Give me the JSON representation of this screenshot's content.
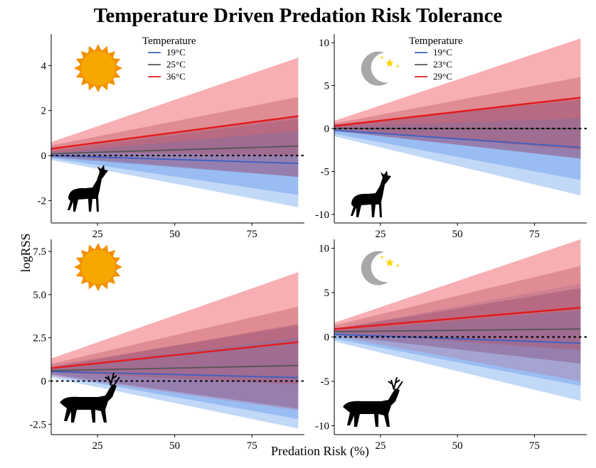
{
  "title": "Temperature Driven Predation Risk Tolerance",
  "xlabel": "Predation Risk (%)",
  "ylabel": "logRSS",
  "colors": {
    "series_19": "#3a5fc4",
    "series_mid": "#555555",
    "series_hot": "#e31a1c",
    "ci_cool_fill": "#78a8ee",
    "ci_hot_fill": "#f06d76",
    "icon_sun": "#f6a800",
    "icon_moon": "#a8a8a8",
    "icon_star": "#ffd200"
  },
  "chart_data": [
    {
      "type": "line",
      "panel": "top-left",
      "time_icon": "sun-icon",
      "animal_icon": "doe-icon",
      "legend_title": "Temperature",
      "x": [
        10,
        90
      ],
      "xlim": [
        10,
        92
      ],
      "xticks": [
        25,
        50,
        75
      ],
      "ylim": [
        -3.0,
        5.4
      ],
      "yticks": [
        -2,
        0,
        2,
        4
      ],
      "ytick_labels": [
        "-2",
        "0",
        "2",
        "4"
      ],
      "reference_line": 0,
      "series": [
        {
          "name": "19°C",
          "color": "#3a5fc4",
          "values": [
            0.0,
            -0.35
          ],
          "ci_inner": [
            [
              -0.12,
              0.12
            ],
            [
              -1.75,
              1.1
            ]
          ],
          "ci_outer": [
            [
              -0.2,
              0.2
            ],
            [
              -2.3,
              1.6
            ]
          ]
        },
        {
          "name": "25°C",
          "color": "#555555",
          "values": [
            0.08,
            0.42
          ],
          "ci_inner": [
            [
              -0.08,
              0.25
            ],
            [
              -0.95,
              1.75
            ]
          ],
          "ci_outer": [
            [
              -0.15,
              0.32
            ],
            [
              -1.75,
              2.6
            ]
          ]
        },
        {
          "name": "36°C",
          "color": "#e31a1c",
          "values": [
            0.3,
            1.75
          ],
          "ci_inner": [
            [
              0.15,
              0.45
            ],
            [
              0.0,
              2.6
            ]
          ],
          "ci_outer": [
            [
              0.0,
              0.6
            ],
            [
              -0.95,
              4.35
            ]
          ]
        }
      ]
    },
    {
      "type": "line",
      "panel": "top-right",
      "time_icon": "moon-icon",
      "animal_icon": "doe-icon",
      "legend_title": "Temperature",
      "x": [
        10,
        90
      ],
      "xlim": [
        10,
        92
      ],
      "xticks": [
        25,
        50,
        75
      ],
      "ylim": [
        -11,
        11
      ],
      "yticks": [
        -10,
        -5,
        0,
        5,
        10
      ],
      "ytick_labels": [
        "-10",
        "-5",
        "0",
        "5",
        "10"
      ],
      "reference_line": 0,
      "series": [
        {
          "name": "19°C",
          "color": "#3a5fc4",
          "values": [
            -0.2,
            -2.2
          ],
          "ci_inner": [
            [
              -0.6,
              0.2
            ],
            [
              -6.0,
              1.2
            ]
          ],
          "ci_outer": [
            [
              -0.9,
              0.5
            ],
            [
              -7.8,
              3.3
            ]
          ]
        },
        {
          "name": "23°C",
          "color": "#555555",
          "values": [
            0.0,
            0.0
          ],
          "ci_inner": [
            [
              -0.25,
              0.25
            ],
            [
              -3.5,
              3.5
            ]
          ],
          "ci_outer": [
            [
              -0.5,
              0.5
            ],
            [
              -6.0,
              6.0
            ]
          ]
        },
        {
          "name": "29°C",
          "color": "#e31a1c",
          "values": [
            0.3,
            3.6
          ],
          "ci_inner": [
            [
              0.0,
              0.6
            ],
            [
              -2.5,
              6.0
            ]
          ],
          "ci_outer": [
            [
              -0.3,
              0.9
            ],
            [
              -3.5,
              10.5
            ]
          ]
        }
      ]
    },
    {
      "type": "line",
      "panel": "bottom-left",
      "time_icon": "sun-icon",
      "animal_icon": "buck-icon",
      "legend_title": "",
      "x": [
        10,
        90
      ],
      "xlim": [
        10,
        92
      ],
      "xticks": [
        25,
        50,
        75
      ],
      "ylim": [
        -3.1,
        8.2
      ],
      "yticks": [
        -2.5,
        0,
        2.5,
        5.0,
        7.5
      ],
      "ytick_labels": [
        "-2.5",
        "0",
        "2.5",
        "5.0",
        "7.5"
      ],
      "reference_line": 0,
      "series": [
        {
          "name": "",
          "color": "#3a5fc4",
          "values": [
            0.55,
            0.2
          ],
          "ci_inner": [
            [
              0.35,
              0.75
            ],
            [
              -2.2,
              2.5
            ]
          ],
          "ci_outer": [
            [
              0.2,
              0.9
            ],
            [
              -2.75,
              3.2
            ]
          ]
        },
        {
          "name": "",
          "color": "#555555",
          "values": [
            0.6,
            0.9
          ],
          "ci_inner": [
            [
              0.4,
              0.8
            ],
            [
              -1.6,
              3.3
            ]
          ],
          "ci_outer": [
            [
              0.25,
              0.95
            ],
            [
              -2.5,
              4.2
            ]
          ]
        },
        {
          "name": "",
          "color": "#e31a1c",
          "values": [
            0.75,
            2.25
          ],
          "ci_inner": [
            [
              0.5,
              1.0
            ],
            [
              -0.2,
              4.3
            ]
          ],
          "ci_outer": [
            [
              0.3,
              1.3
            ],
            [
              -1.7,
              6.3
            ]
          ]
        }
      ]
    },
    {
      "type": "line",
      "panel": "bottom-right",
      "time_icon": "moon-icon",
      "animal_icon": "buck-icon",
      "legend_title": "",
      "x": [
        10,
        90
      ],
      "xlim": [
        10,
        92
      ],
      "xticks": [
        25,
        50,
        75
      ],
      "ylim": [
        -11,
        11
      ],
      "yticks": [
        -10,
        -5,
        0,
        5,
        10
      ],
      "ytick_labels": [
        "-10",
        "-5",
        "0",
        "5",
        "10"
      ],
      "reference_line": 0,
      "series": [
        {
          "name": "",
          "color": "#3a5fc4",
          "values": [
            0.3,
            -0.7
          ],
          "ci_inner": [
            [
              -0.2,
              0.6
            ],
            [
              -5.5,
              3.0
            ]
          ],
          "ci_outer": [
            [
              -0.5,
              0.9
            ],
            [
              -7.2,
              6.0
            ]
          ]
        },
        {
          "name": "",
          "color": "#555555",
          "values": [
            0.6,
            0.9
          ],
          "ci_inner": [
            [
              0.2,
              0.9
            ],
            [
              -3.0,
              5.5
            ]
          ],
          "ci_outer": [
            [
              -0.1,
              1.1
            ],
            [
              -5.0,
              8.2
            ]
          ]
        },
        {
          "name": "",
          "color": "#e31a1c",
          "values": [
            0.9,
            3.3
          ],
          "ci_inner": [
            [
              0.5,
              1.3
            ],
            [
              -1.5,
              8.0
            ]
          ],
          "ci_outer": [
            [
              0.1,
              1.6
            ],
            [
              -5.0,
              11.0
            ]
          ]
        }
      ]
    }
  ]
}
